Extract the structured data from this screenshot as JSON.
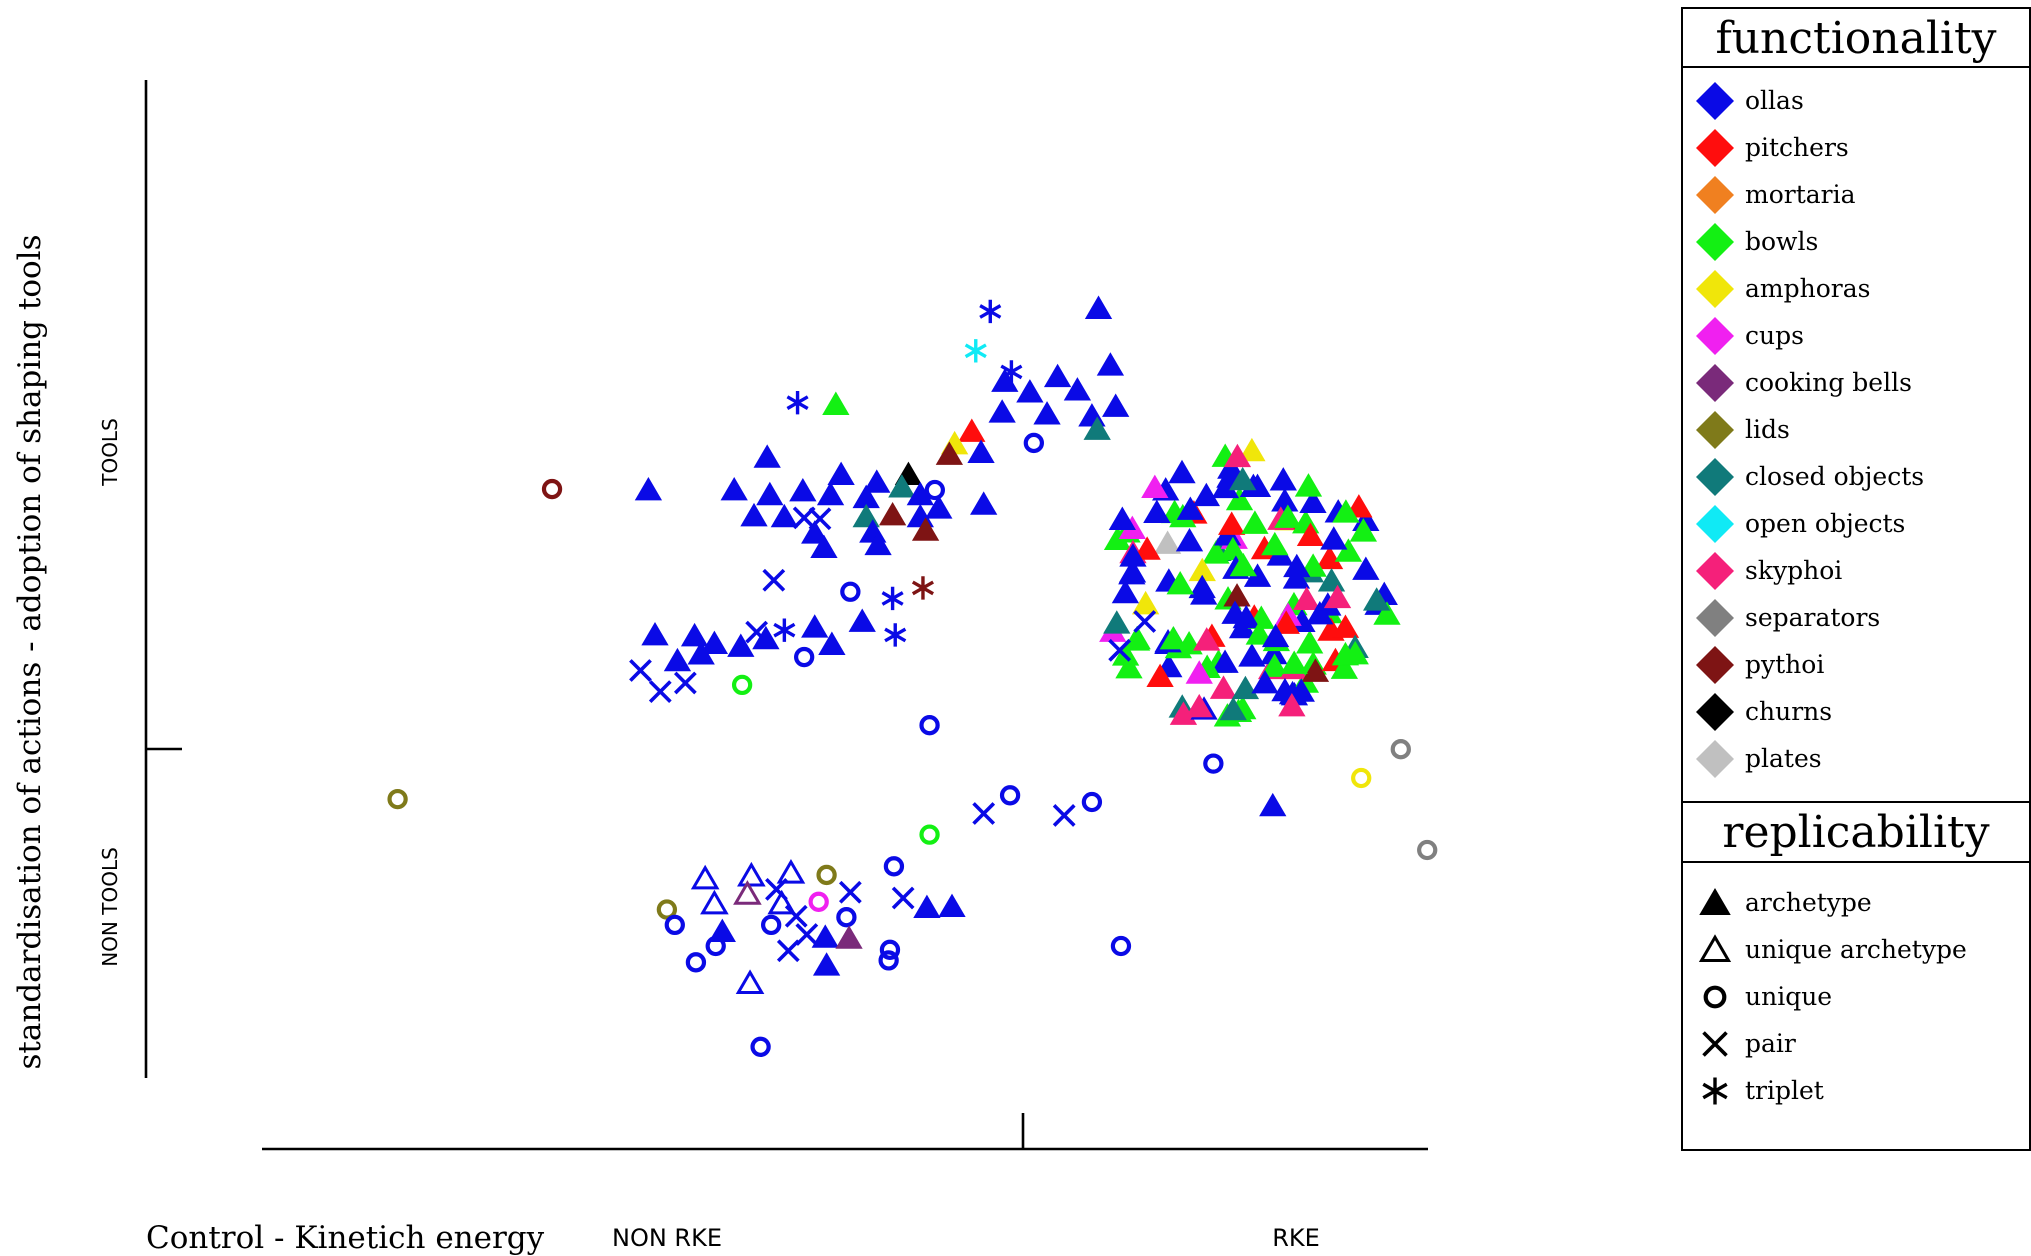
{
  "chart_data": {
    "type": "scatter",
    "xlabel": "Control - Kinetich energy",
    "ylabel": "standardisation of actions - adoption of shaping tools",
    "x_categories": [
      "NON RKE",
      "RKE"
    ],
    "y_categories": [
      "NON TOOLS",
      "TOOLS"
    ],
    "xlim": [
      0,
      100
    ],
    "ylim": [
      0,
      100
    ],
    "legend_position": "right",
    "functionality_title": "functionality",
    "replicability_title": "replicability",
    "functionality": [
      {
        "key": "ollas",
        "label": "ollas",
        "color": "#0a0ae6"
      },
      {
        "key": "pitchers",
        "label": "pitchers",
        "color": "#ff0d0d"
      },
      {
        "key": "mortaria",
        "label": "mortaria",
        "color": "#f08020"
      },
      {
        "key": "bowls",
        "label": "bowls",
        "color": "#13f013"
      },
      {
        "key": "amphoras",
        "label": "amphoras",
        "color": "#f0e60a"
      },
      {
        "key": "cups",
        "label": "cups",
        "color": "#f020f0"
      },
      {
        "key": "cooking_bells",
        "label": "cooking bells",
        "color": "#7a2a7a"
      },
      {
        "key": "lids",
        "label": "lids",
        "color": "#7f7a1a"
      },
      {
        "key": "closed_objects",
        "label": "closed objects",
        "color": "#107a7a"
      },
      {
        "key": "open_objects",
        "label": "open objects",
        "color": "#10eaf5"
      },
      {
        "key": "skyphoi",
        "label": "skyphoi",
        "color": "#f5207a"
      },
      {
        "key": "separators",
        "label": "separators",
        "color": "#808080"
      },
      {
        "key": "pythoi",
        "label": "pythoi",
        "color": "#7e1414"
      },
      {
        "key": "churns",
        "label": "churns",
        "color": "#000000"
      },
      {
        "key": "plates",
        "label": "plates",
        "color": "#c0c0c0"
      }
    ],
    "replicability": [
      {
        "key": "archetype",
        "label": "archetype",
        "icon": "filled-triangle-icon"
      },
      {
        "key": "unique_archetype",
        "label": "unique archetype",
        "icon": "open-triangle-icon"
      },
      {
        "key": "unique",
        "label": "unique",
        "icon": "ring-icon"
      },
      {
        "key": "pair",
        "label": "pair",
        "icon": "cross-icon"
      },
      {
        "key": "triplet",
        "label": "triplet",
        "icon": "asterisk-icon"
      }
    ],
    "points": [
      {
        "x": 62.9,
        "y": 81.1,
        "f": "ollas",
        "r": "triplet"
      },
      {
        "x": 71.1,
        "y": 81.4,
        "f": "ollas",
        "r": "archetype"
      },
      {
        "x": 61.8,
        "y": 77.0,
        "f": "open_objects",
        "r": "triplet"
      },
      {
        "x": 64.5,
        "y": 74.8,
        "f": "ollas",
        "r": "triplet"
      },
      {
        "x": 48.3,
        "y": 71.6,
        "f": "ollas",
        "r": "triplet"
      },
      {
        "x": 51.2,
        "y": 71.4,
        "f": "bowls",
        "r": "archetype"
      },
      {
        "x": 64.0,
        "y": 73.8,
        "f": "ollas",
        "r": "archetype"
      },
      {
        "x": 68.0,
        "y": 74.3,
        "f": "ollas",
        "r": "archetype"
      },
      {
        "x": 72.0,
        "y": 75.5,
        "f": "ollas",
        "r": "archetype"
      },
      {
        "x": 65.9,
        "y": 72.7,
        "f": "ollas",
        "r": "archetype"
      },
      {
        "x": 69.5,
        "y": 72.9,
        "f": "ollas",
        "r": "archetype"
      },
      {
        "x": 72.4,
        "y": 71.2,
        "f": "ollas",
        "r": "archetype"
      },
      {
        "x": 63.8,
        "y": 70.6,
        "f": "ollas",
        "r": "archetype"
      },
      {
        "x": 67.2,
        "y": 70.4,
        "f": "ollas",
        "r": "archetype"
      },
      {
        "x": 70.6,
        "y": 70.2,
        "f": "ollas",
        "r": "archetype"
      },
      {
        "x": 71.0,
        "y": 68.8,
        "f": "closed_objects",
        "r": "archetype"
      },
      {
        "x": 61.5,
        "y": 68.6,
        "f": "pitchers",
        "r": "archetype"
      },
      {
        "x": 60.2,
        "y": 67.3,
        "f": "amphoras",
        "r": "archetype"
      },
      {
        "x": 59.8,
        "y": 66.2,
        "f": "pythoi",
        "r": "archetype"
      },
      {
        "x": 62.2,
        "y": 66.4,
        "f": "ollas",
        "r": "archetype"
      },
      {
        "x": 66.2,
        "y": 67.4,
        "f": "ollas",
        "r": "unique"
      },
      {
        "x": 46.0,
        "y": 65.9,
        "f": "ollas",
        "r": "archetype"
      },
      {
        "x": 56.7,
        "y": 64.1,
        "f": "churns",
        "r": "archetype"
      },
      {
        "x": 51.6,
        "y": 64.1,
        "f": "ollas",
        "r": "archetype"
      },
      {
        "x": 54.3,
        "y": 63.3,
        "f": "ollas",
        "r": "archetype"
      },
      {
        "x": 56.2,
        "y": 62.8,
        "f": "closed_objects",
        "r": "archetype"
      },
      {
        "x": 58.7,
        "y": 62.5,
        "f": "ollas",
        "r": "unique"
      },
      {
        "x": 43.5,
        "y": 62.5,
        "f": "ollas",
        "r": "archetype"
      },
      {
        "x": 46.2,
        "y": 62.0,
        "f": "ollas",
        "r": "archetype"
      },
      {
        "x": 48.7,
        "y": 62.4,
        "f": "ollas",
        "r": "archetype"
      },
      {
        "x": 50.8,
        "y": 62.0,
        "f": "ollas",
        "r": "archetype"
      },
      {
        "x": 53.5,
        "y": 61.7,
        "f": "ollas",
        "r": "archetype"
      },
      {
        "x": 57.6,
        "y": 62.0,
        "f": "ollas",
        "r": "archetype"
      },
      {
        "x": 62.4,
        "y": 61.0,
        "f": "ollas",
        "r": "archetype"
      },
      {
        "x": 37.0,
        "y": 62.5,
        "f": "ollas",
        "r": "archetype"
      },
      {
        "x": 45.0,
        "y": 59.8,
        "f": "ollas",
        "r": "archetype"
      },
      {
        "x": 48.8,
        "y": 59.6,
        "f": "ollas",
        "r": "pair"
      },
      {
        "x": 50.0,
        "y": 59.5,
        "f": "ollas",
        "r": "pair"
      },
      {
        "x": 47.3,
        "y": 59.7,
        "f": "ollas",
        "r": "archetype"
      },
      {
        "x": 53.5,
        "y": 59.7,
        "f": "closed_objects",
        "r": "archetype"
      },
      {
        "x": 55.5,
        "y": 59.9,
        "f": "pythoi",
        "r": "archetype"
      },
      {
        "x": 57.6,
        "y": 59.7,
        "f": "ollas",
        "r": "archetype"
      },
      {
        "x": 59.0,
        "y": 60.6,
        "f": "ollas",
        "r": "archetype"
      },
      {
        "x": 49.6,
        "y": 58.0,
        "f": "ollas",
        "r": "archetype"
      },
      {
        "x": 54.0,
        "y": 58.1,
        "f": "ollas",
        "r": "archetype"
      },
      {
        "x": 58.0,
        "y": 58.3,
        "f": "pythoi",
        "r": "archetype"
      },
      {
        "x": 50.3,
        "y": 56.5,
        "f": "ollas",
        "r": "archetype"
      },
      {
        "x": 54.4,
        "y": 56.8,
        "f": "ollas",
        "r": "archetype"
      },
      {
        "x": 46.5,
        "y": 53.1,
        "f": "ollas",
        "r": "pair"
      },
      {
        "x": 52.3,
        "y": 51.9,
        "f": "ollas",
        "r": "unique"
      },
      {
        "x": 55.5,
        "y": 51.2,
        "f": "ollas",
        "r": "triplet"
      },
      {
        "x": 57.8,
        "y": 52.3,
        "f": "pythoi",
        "r": "triplet"
      },
      {
        "x": 53.2,
        "y": 48.8,
        "f": "ollas",
        "r": "archetype"
      },
      {
        "x": 55.7,
        "y": 47.4,
        "f": "ollas",
        "r": "triplet"
      },
      {
        "x": 37.5,
        "y": 47.4,
        "f": "ollas",
        "r": "archetype"
      },
      {
        "x": 40.5,
        "y": 47.3,
        "f": "ollas",
        "r": "archetype"
      },
      {
        "x": 42.0,
        "y": 46.5,
        "f": "ollas",
        "r": "archetype"
      },
      {
        "x": 44.0,
        "y": 46.2,
        "f": "ollas",
        "r": "archetype"
      },
      {
        "x": 45.2,
        "y": 47.7,
        "f": "ollas",
        "r": "pair"
      },
      {
        "x": 45.9,
        "y": 47.0,
        "f": "ollas",
        "r": "archetype"
      },
      {
        "x": 47.3,
        "y": 47.9,
        "f": "ollas",
        "r": "triplet"
      },
      {
        "x": 49.6,
        "y": 48.2,
        "f": "ollas",
        "r": "archetype"
      },
      {
        "x": 50.9,
        "y": 46.4,
        "f": "ollas",
        "r": "archetype"
      },
      {
        "x": 39.2,
        "y": 44.7,
        "f": "ollas",
        "r": "archetype"
      },
      {
        "x": 41.0,
        "y": 45.4,
        "f": "ollas",
        "r": "archetype"
      },
      {
        "x": 48.8,
        "y": 45.1,
        "f": "ollas",
        "r": "unique"
      },
      {
        "x": 36.4,
        "y": 43.7,
        "f": "ollas",
        "r": "pair"
      },
      {
        "x": 39.8,
        "y": 42.4,
        "f": "ollas",
        "r": "pair"
      },
      {
        "x": 37.9,
        "y": 41.5,
        "f": "ollas",
        "r": "pair"
      },
      {
        "x": 44.1,
        "y": 42.2,
        "f": "bowls",
        "r": "unique"
      },
      {
        "x": 74.6,
        "y": 48.8,
        "f": "ollas",
        "r": "pair"
      },
      {
        "x": 72.7,
        "y": 45.8,
        "f": "ollas",
        "r": "pair"
      },
      {
        "x": 58.3,
        "y": 38.0,
        "f": "ollas",
        "r": "unique"
      },
      {
        "x": 29.7,
        "y": 62.6,
        "f": "pythoi",
        "r": "unique"
      },
      {
        "x": 18.0,
        "y": 30.3,
        "f": "lids",
        "r": "unique"
      },
      {
        "x": 64.4,
        "y": 30.7,
        "f": "ollas",
        "r": "unique"
      },
      {
        "x": 70.6,
        "y": 30.0,
        "f": "ollas",
        "r": "unique"
      },
      {
        "x": 62.4,
        "y": 28.8,
        "f": "ollas",
        "r": "pair"
      },
      {
        "x": 68.5,
        "y": 28.6,
        "f": "ollas",
        "r": "pair"
      },
      {
        "x": 58.3,
        "y": 26.6,
        "f": "bowls",
        "r": "unique"
      },
      {
        "x": 79.8,
        "y": 34.0,
        "f": "ollas",
        "r": "unique"
      },
      {
        "x": 84.3,
        "y": 29.6,
        "f": "ollas",
        "r": "archetype"
      },
      {
        "x": 55.6,
        "y": 23.3,
        "f": "ollas",
        "r": "unique"
      },
      {
        "x": 56.3,
        "y": 20.0,
        "f": "ollas",
        "r": "pair"
      },
      {
        "x": 58.1,
        "y": 19.0,
        "f": "ollas",
        "r": "archetype"
      },
      {
        "x": 60.0,
        "y": 19.1,
        "f": "ollas",
        "r": "archetype"
      },
      {
        "x": 41.3,
        "y": 22.0,
        "f": "ollas",
        "r": "unique_archetype"
      },
      {
        "x": 44.8,
        "y": 22.3,
        "f": "ollas",
        "r": "unique_archetype"
      },
      {
        "x": 47.8,
        "y": 22.6,
        "f": "ollas",
        "r": "unique_archetype"
      },
      {
        "x": 50.5,
        "y": 22.4,
        "f": "lids",
        "r": "unique"
      },
      {
        "x": 38.4,
        "y": 18.8,
        "f": "lids",
        "r": "unique"
      },
      {
        "x": 42.0,
        "y": 19.4,
        "f": "ollas",
        "r": "unique_archetype"
      },
      {
        "x": 44.5,
        "y": 20.4,
        "f": "cooking_bells",
        "r": "unique_archetype"
      },
      {
        "x": 46.7,
        "y": 20.9,
        "f": "ollas",
        "r": "pair"
      },
      {
        "x": 47.1,
        "y": 19.4,
        "f": "ollas",
        "r": "unique_archetype"
      },
      {
        "x": 49.9,
        "y": 19.6,
        "f": "cups",
        "r": "unique"
      },
      {
        "x": 52.3,
        "y": 20.6,
        "f": "ollas",
        "r": "pair"
      },
      {
        "x": 39.0,
        "y": 17.2,
        "f": "ollas",
        "r": "unique"
      },
      {
        "x": 42.6,
        "y": 16.5,
        "f": "ollas",
        "r": "archetype"
      },
      {
        "x": 46.3,
        "y": 17.2,
        "f": "ollas",
        "r": "unique"
      },
      {
        "x": 48.2,
        "y": 18.1,
        "f": "ollas",
        "r": "pair"
      },
      {
        "x": 52.0,
        "y": 18.0,
        "f": "ollas",
        "r": "unique"
      },
      {
        "x": 49.0,
        "y": 16.2,
        "f": "ollas",
        "r": "pair"
      },
      {
        "x": 50.4,
        "y": 15.9,
        "f": "ollas",
        "r": "archetype"
      },
      {
        "x": 52.2,
        "y": 15.8,
        "f": "cooking_bells",
        "r": "archetype"
      },
      {
        "x": 42.1,
        "y": 15.0,
        "f": "ollas",
        "r": "unique"
      },
      {
        "x": 47.6,
        "y": 14.5,
        "f": "ollas",
        "r": "pair"
      },
      {
        "x": 55.3,
        "y": 14.6,
        "f": "ollas",
        "r": "unique"
      },
      {
        "x": 40.6,
        "y": 13.3,
        "f": "ollas",
        "r": "unique"
      },
      {
        "x": 50.5,
        "y": 13.0,
        "f": "ollas",
        "r": "archetype"
      },
      {
        "x": 55.2,
        "y": 13.5,
        "f": "ollas",
        "r": "unique"
      },
      {
        "x": 44.7,
        "y": 11.1,
        "f": "ollas",
        "r": "unique_archetype"
      },
      {
        "x": 72.8,
        "y": 15.0,
        "f": "ollas",
        "r": "unique"
      },
      {
        "x": 45.5,
        "y": 4.5,
        "f": "ollas",
        "r": "unique"
      },
      {
        "x": 91.0,
        "y": 32.5,
        "f": "amphoras",
        "r": "unique"
      },
      {
        "x": 94.0,
        "y": 35.5,
        "f": "separators",
        "r": "unique"
      },
      {
        "x": 96.0,
        "y": 25.0,
        "f": "separators",
        "r": "unique"
      }
    ],
    "rke_cluster": {
      "count": 150,
      "symbol": "archetype",
      "mix": {
        "ollas": 0.39,
        "bowls": 0.32,
        "pitchers": 0.08,
        "closed_objects": 0.07,
        "skyphoi": 0.04,
        "amphoras": 0.03,
        "cups": 0.02,
        "pythoi": 0.02,
        "plates": 0.02,
        "open_objects": 0.01
      }
    }
  }
}
